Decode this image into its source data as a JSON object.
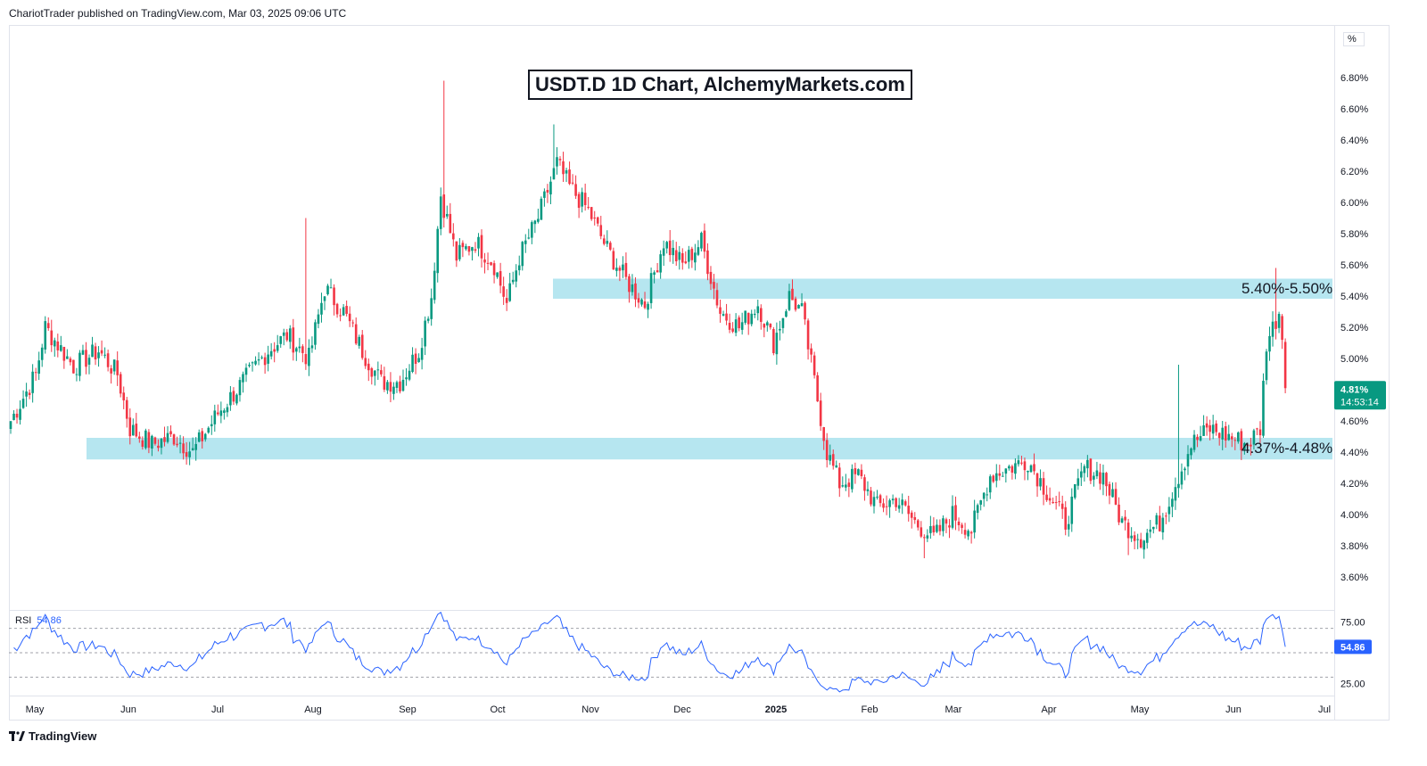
{
  "publisher": "ChariotTrader published on TradingView.com, Mar 03, 2025 09:06 UTC",
  "footer_logo": "TradingView",
  "price_axis_unit": "%",
  "chart_data": [
    {
      "type": "candlestick",
      "title": "USDT.D 1D Chart, AlchemyMarkets.com",
      "ylim": [
        3.5,
        7.0
      ],
      "y_ticks": [
        "6.80%",
        "6.60%",
        "6.40%",
        "6.20%",
        "6.00%",
        "5.80%",
        "5.60%",
        "5.40%",
        "5.20%",
        "5.00%",
        "4.60%",
        "4.40%",
        "4.20%",
        "4.00%",
        "3.80%",
        "3.60%"
      ],
      "x_ticks": [
        {
          "label": "May",
          "bold": false
        },
        {
          "label": "Jun",
          "bold": false
        },
        {
          "label": "Jul",
          "bold": false
        },
        {
          "label": "Aug",
          "bold": false
        },
        {
          "label": "Sep",
          "bold": false
        },
        {
          "label": "Oct",
          "bold": false
        },
        {
          "label": "Nov",
          "bold": false
        },
        {
          "label": "Dec",
          "bold": false
        },
        {
          "label": "2025",
          "bold": true
        },
        {
          "label": "Feb",
          "bold": false
        },
        {
          "label": "Mar",
          "bold": false
        },
        {
          "label": "Apr",
          "bold": false
        },
        {
          "label": "May",
          "bold": false
        },
        {
          "label": "Jun",
          "bold": false
        },
        {
          "label": "Jul",
          "bold": false
        }
      ],
      "key_points": [
        {
          "t": 0,
          "v": 4.6
        },
        {
          "t": 8,
          "v": 4.9
        },
        {
          "t": 11,
          "v": 5.2
        },
        {
          "t": 20,
          "v": 4.95
        },
        {
          "t": 28,
          "v": 5.05
        },
        {
          "t": 34,
          "v": 4.9
        },
        {
          "t": 38,
          "v": 4.55
        },
        {
          "t": 45,
          "v": 4.45
        },
        {
          "t": 52,
          "v": 4.5
        },
        {
          "t": 58,
          "v": 4.4
        },
        {
          "t": 66,
          "v": 4.65
        },
        {
          "t": 74,
          "v": 4.85
        },
        {
          "t": 82,
          "v": 5.05
        },
        {
          "t": 88,
          "v": 5.15
        },
        {
          "t": 95,
          "v": 5.0
        },
        {
          "t": 100,
          "v": 5.45
        },
        {
          "t": 106,
          "v": 5.3
        },
        {
          "t": 112,
          "v": 5.05
        },
        {
          "t": 118,
          "v": 4.85
        },
        {
          "t": 124,
          "v": 4.85
        },
        {
          "t": 130,
          "v": 5.05
        },
        {
          "t": 134,
          "v": 5.4
        },
        {
          "t": 137,
          "v": 6.05
        },
        {
          "t": 142,
          "v": 5.65
        },
        {
          "t": 148,
          "v": 5.75
        },
        {
          "t": 154,
          "v": 5.6
        },
        {
          "t": 158,
          "v": 5.35
        },
        {
          "t": 162,
          "v": 5.65
        },
        {
          "t": 168,
          "v": 5.9
        },
        {
          "t": 174,
          "v": 6.25
        },
        {
          "t": 178,
          "v": 6.1
        },
        {
          "t": 184,
          "v": 5.95
        },
        {
          "t": 190,
          "v": 5.7
        },
        {
          "t": 196,
          "v": 5.5
        },
        {
          "t": 202,
          "v": 5.35
        },
        {
          "t": 208,
          "v": 5.75
        },
        {
          "t": 214,
          "v": 5.6
        },
        {
          "t": 220,
          "v": 5.75
        },
        {
          "t": 226,
          "v": 5.3
        },
        {
          "t": 232,
          "v": 5.2
        },
        {
          "t": 238,
          "v": 5.35
        },
        {
          "t": 243,
          "v": 5.1
        },
        {
          "t": 248,
          "v": 5.4
        },
        {
          "t": 252,
          "v": 5.3
        },
        {
          "t": 256,
          "v": 4.85
        },
        {
          "t": 260,
          "v": 4.4
        },
        {
          "t": 264,
          "v": 4.2
        },
        {
          "t": 270,
          "v": 4.25
        },
        {
          "t": 276,
          "v": 4.05
        },
        {
          "t": 282,
          "v": 4.1
        },
        {
          "t": 288,
          "v": 3.95
        },
        {
          "t": 294,
          "v": 3.85
        },
        {
          "t": 300,
          "v": 4.0
        },
        {
          "t": 306,
          "v": 3.9
        },
        {
          "t": 312,
          "v": 4.25
        },
        {
          "t": 318,
          "v": 4.3
        },
        {
          "t": 324,
          "v": 4.35
        },
        {
          "t": 330,
          "v": 4.15
        },
        {
          "t": 336,
          "v": 3.95
        },
        {
          "t": 342,
          "v": 4.3
        },
        {
          "t": 348,
          "v": 4.25
        },
        {
          "t": 354,
          "v": 3.95
        },
        {
          "t": 360,
          "v": 3.85
        },
        {
          "t": 366,
          "v": 3.95
        },
        {
          "t": 372,
          "v": 4.25
        },
        {
          "t": 376,
          "v": 4.45
        },
        {
          "t": 382,
          "v": 4.55
        },
        {
          "t": 388,
          "v": 4.5
        },
        {
          "t": 394,
          "v": 4.45
        },
        {
          "t": 398,
          "v": 4.55
        },
        {
          "t": 400,
          "v": 5.1
        },
        {
          "t": 402,
          "v": 5.2
        },
        {
          "t": 404,
          "v": 5.3
        },
        {
          "t": 405,
          "v": 5.15
        },
        {
          "t": 406,
          "v": 4.81
        }
      ],
      "wick_extremes": [
        {
          "t": 138,
          "v": 6.78
        },
        {
          "t": 173,
          "v": 6.5
        },
        {
          "t": 94,
          "v": 5.9
        },
        {
          "t": 291,
          "v": 3.72
        },
        {
          "t": 356,
          "v": 3.74
        },
        {
          "t": 403,
          "v": 5.58
        },
        {
          "t": 372,
          "v": 4.96
        }
      ],
      "zones": [
        {
          "label": "5.40%-5.50%",
          "low": 5.4,
          "high": 5.5,
          "color": "#b2e5ef"
        },
        {
          "label": "4.37%-4.48%",
          "low": 4.37,
          "high": 4.48,
          "color": "#b2e5ef"
        }
      ],
      "last_price": {
        "value": "4.81%",
        "countdown": "14:53:14",
        "color": "#089981"
      },
      "up_color": "#089981",
      "down_color": "#f23645"
    },
    {
      "type": "line",
      "name": "RSI",
      "value_label": "54.86",
      "ylim": [
        15,
        85
      ],
      "levels": [
        70,
        50,
        30
      ],
      "y_ticks": [
        "75.00",
        "25.00"
      ],
      "color": "#2962ff",
      "last_value": "54.86"
    }
  ]
}
